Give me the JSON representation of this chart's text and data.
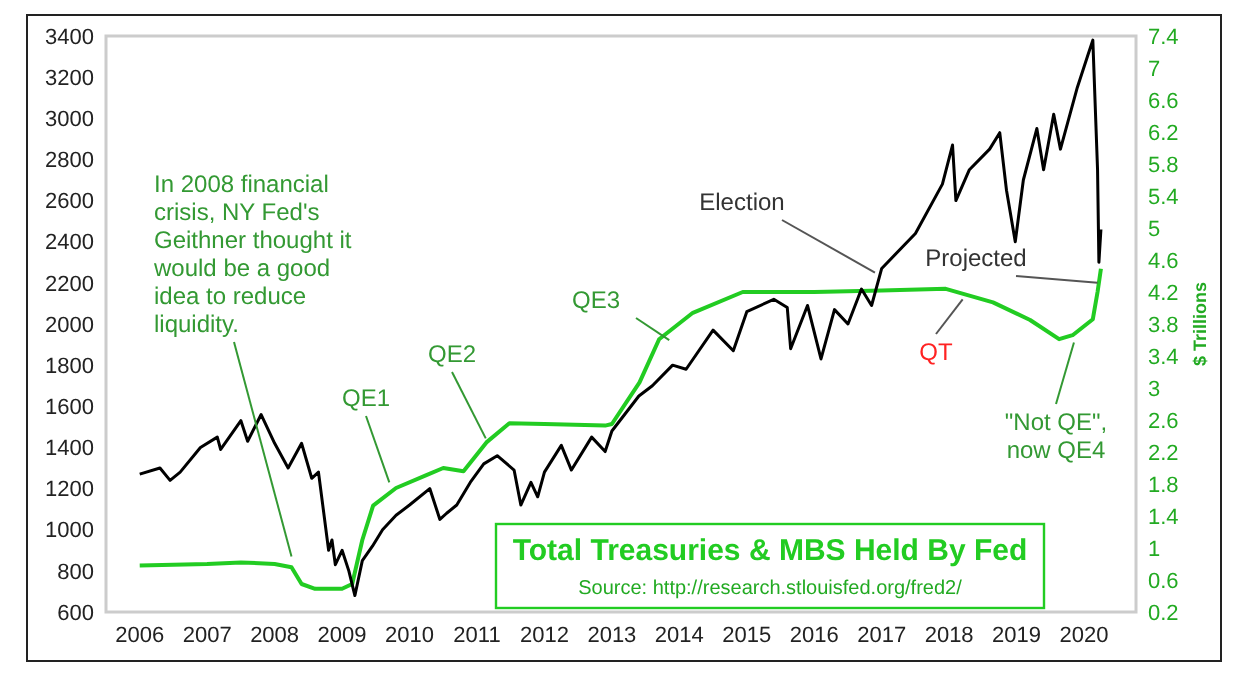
{
  "chart_data": {
    "type": "line",
    "ylim": [
      600,
      3400
    ],
    "yticks": [
      600,
      800,
      1000,
      1200,
      1400,
      1600,
      1800,
      2000,
      2200,
      2400,
      2600,
      2800,
      3000,
      3200,
      3400
    ],
    "y2lim": [
      0.2,
      7.4
    ],
    "y2ticks": [
      0.2,
      0.6,
      1,
      1.4,
      1.8,
      2.2,
      2.6,
      3,
      3.4,
      3.8,
      4.2,
      4.6,
      5,
      5.4,
      5.8,
      6.2,
      6.6,
      7,
      7.4
    ],
    "y2label": "$ Trillions",
    "xlim": [
      2005.5,
      2020.77
    ],
    "xticks": [
      2006,
      2007,
      2008,
      2009,
      2010,
      2011,
      2012,
      2013,
      2014,
      2015,
      2016,
      2017,
      2018,
      2019,
      2020
    ],
    "grid": false,
    "legend": "bottom",
    "series": [
      {
        "color": "#000000",
        "x": [
          2006.0,
          2006.3,
          2006.45,
          2006.6,
          2006.9,
          2007.15,
          2007.2,
          2007.5,
          2007.6,
          2007.8,
          2008.0,
          2008.2,
          2008.4,
          2008.55,
          2008.65,
          2008.8,
          2008.85,
          2008.9,
          2009.0,
          2009.1,
          2009.19,
          2009.3,
          2009.45,
          2009.6,
          2009.8,
          2010.0,
          2010.3,
          2010.45,
          2010.55,
          2010.7,
          2010.9,
          2011.1,
          2011.3,
          2011.55,
          2011.65,
          2011.8,
          2011.9,
          2012.0,
          2012.25,
          2012.4,
          2012.7,
          2012.9,
          2013.0,
          2013.4,
          2013.6,
          2013.9,
          2014.1,
          2014.5,
          2014.8,
          2015.0,
          2015.4,
          2015.6,
          2015.65,
          2015.9,
          2016.1,
          2016.3,
          2016.5,
          2016.7,
          2016.85,
          2017.0,
          2017.5,
          2017.9,
          2018.05,
          2018.1,
          2018.3,
          2018.6,
          2018.75,
          2018.85,
          2018.98,
          2019.1,
          2019.3,
          2019.4,
          2019.55,
          2019.65,
          2019.9,
          2020.05,
          2020.13,
          2020.2,
          2020.22,
          2020.25
        ],
        "values": [
          1270,
          1300,
          1240,
          1280,
          1400,
          1450,
          1390,
          1530,
          1430,
          1560,
          1420,
          1300,
          1420,
          1250,
          1280,
          900,
          950,
          830,
          900,
          800,
          680,
          850,
          920,
          1000,
          1070,
          1120,
          1200,
          1050,
          1080,
          1120,
          1230,
          1320,
          1360,
          1290,
          1120,
          1230,
          1160,
          1280,
          1410,
          1290,
          1450,
          1380,
          1480,
          1650,
          1700,
          1800,
          1780,
          1970,
          1870,
          2060,
          2120,
          2080,
          1880,
          2090,
          1830,
          2070,
          2000,
          2170,
          2090,
          2270,
          2440,
          2680,
          2870,
          2600,
          2750,
          2850,
          2930,
          2650,
          2400,
          2700,
          2950,
          2750,
          3020,
          2850,
          3150,
          3300,
          3380,
          2750,
          2300,
          2460
        ]
      },
      {
        "name": "Total Treasuries & MBS Held By Fed",
        "color": "#22cc22",
        "axis": "y2",
        "x": [
          2006.0,
          2007.0,
          2007.5,
          2008.0,
          2008.25,
          2008.4,
          2008.6,
          2009.0,
          2009.15,
          2009.3,
          2009.46,
          2009.8,
          2010.25,
          2010.5,
          2010.8,
          2011.14,
          2011.48,
          2012.0,
          2012.9,
          2013.0,
          2013.41,
          2013.7,
          2014.2,
          2014.94,
          2016.0,
          2017.0,
          2017.95,
          2018.65,
          2019.2,
          2019.63,
          2019.83,
          2020.13,
          2020.2,
          2020.25
        ],
        "values": [
          0.78,
          0.8,
          0.82,
          0.8,
          0.76,
          0.55,
          0.49,
          0.49,
          0.55,
          1.1,
          1.53,
          1.75,
          1.91,
          2.0,
          1.96,
          2.32,
          2.56,
          2.55,
          2.53,
          2.55,
          3.07,
          3.61,
          3.94,
          4.2,
          4.2,
          4.22,
          4.24,
          4.07,
          3.85,
          3.61,
          3.66,
          3.86,
          4.2,
          4.49
        ]
      }
    ],
    "annotations": [
      {
        "text": "In 2008 financial\ncrisis, NY Fed's\nGeithner thought it\nwould be a good\nidea to reduce\nliquidity.",
        "x": 2008.25,
        "y": 870
      },
      {
        "text": "QE1",
        "x": 2009.7,
        "y": 1230
      },
      {
        "text": "QE2",
        "x": 2011.13,
        "y": 1444
      },
      {
        "text": "QE3",
        "x": 2013.85,
        "y": 1922
      },
      {
        "text": "Election",
        "x": 2016.9,
        "y": 2250
      },
      {
        "text": "Projected",
        "x": 2020.2,
        "y": 2200
      },
      {
        "text": "QT",
        "x": 2018.2,
        "y": 2120
      },
      {
        "text": "\"Not QE\",\nnow QE4",
        "x": 2019.85,
        "y": 1910
      },
      "Source: http://research.stlouisfed.org/fred2/"
    ]
  }
}
